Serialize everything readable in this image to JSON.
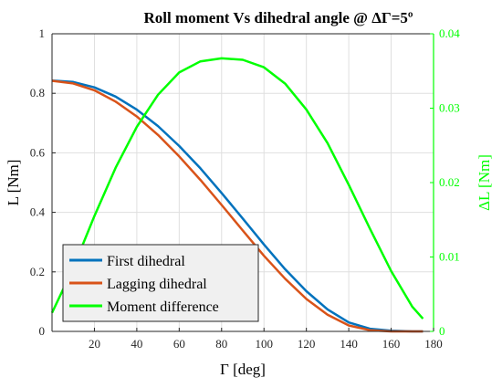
{
  "chart_data": {
    "type": "line",
    "title": "Roll moment Vs dihedral angle @ ΔΓ=5º",
    "xlabel": "Γ [deg]",
    "ylabel_left": "L [Nm]",
    "ylabel_right": "ΔL [Nm]",
    "xlim": [
      0,
      180
    ],
    "ylim_left": [
      0,
      1
    ],
    "ylim_right": [
      0,
      0.04
    ],
    "x_ticks": [
      20,
      40,
      60,
      80,
      100,
      120,
      140,
      160,
      180
    ],
    "y_ticks_left": [
      0,
      0.2,
      0.4,
      0.6,
      0.8,
      1
    ],
    "y_ticks_right": [
      0,
      0.01,
      0.02,
      0.03,
      0.04
    ],
    "grid": true,
    "legend_position": "bottom-left",
    "colors": {
      "first": "#0072BD",
      "lagging": "#D95319",
      "difference": "#00FF00",
      "right_axis": "#00FF00"
    },
    "series": [
      {
        "name": "First dihedral",
        "axis": "left",
        "x": [
          0,
          10,
          20,
          30,
          40,
          50,
          60,
          70,
          80,
          90,
          100,
          110,
          120,
          130,
          140,
          150,
          160,
          170,
          175
        ],
        "values": [
          0.843,
          0.838,
          0.82,
          0.789,
          0.745,
          0.69,
          0.623,
          0.548,
          0.465,
          0.379,
          0.292,
          0.209,
          0.135,
          0.074,
          0.03,
          0.009,
          0.002,
          0.0,
          0.0
        ]
      },
      {
        "name": "Lagging dihedral",
        "axis": "left",
        "x": [
          0,
          10,
          20,
          30,
          40,
          50,
          60,
          70,
          80,
          90,
          100,
          110,
          120,
          130,
          140,
          150,
          160,
          170,
          175
        ],
        "values": [
          0.842,
          0.833,
          0.81,
          0.772,
          0.722,
          0.66,
          0.588,
          0.509,
          0.425,
          0.339,
          0.254,
          0.177,
          0.109,
          0.056,
          0.02,
          0.004,
          0.0,
          0.0,
          0.0
        ]
      },
      {
        "name": "Moment difference",
        "axis": "right",
        "x": [
          0,
          10,
          20,
          30,
          40,
          50,
          60,
          70,
          80,
          90,
          100,
          110,
          120,
          130,
          140,
          150,
          160,
          170,
          175
        ],
        "values": [
          0.0025,
          0.0085,
          0.0155,
          0.022,
          0.0275,
          0.0318,
          0.0348,
          0.0363,
          0.0367,
          0.0365,
          0.0355,
          0.0333,
          0.0298,
          0.0253,
          0.0197,
          0.0138,
          0.0081,
          0.0033,
          0.0017
        ]
      }
    ]
  }
}
